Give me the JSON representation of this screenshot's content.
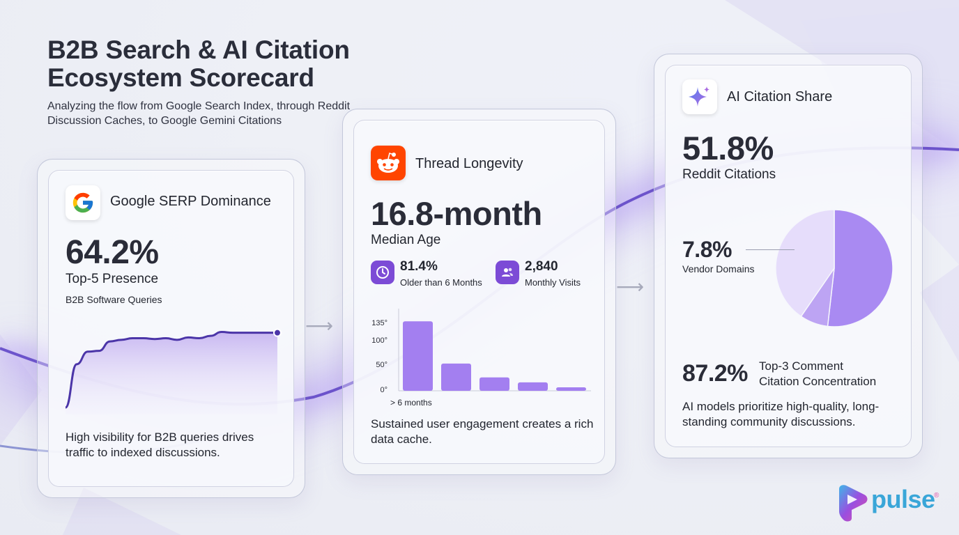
{
  "header": {
    "title": "B2B Search & AI Citation Ecosystem Scorecard",
    "subtitle": "Analyzing the flow from Google Search Index, through Reddit Discussion Caches, to Google Gemini Citations"
  },
  "cards": {
    "google": {
      "title": "Google SERP Dominance",
      "icon": "google-logo-icon",
      "value": "64.2%",
      "label": "Top-5 Presence",
      "sublabel": "B2B Software Queries",
      "description": "High visibility for B2B queries drives traffic to indexed discussions."
    },
    "reddit": {
      "title": "Thread Longevity",
      "icon": "reddit-logo-icon",
      "value": "16.8-month",
      "label": "Median Age",
      "stat1": {
        "value": "81.4%",
        "label": "Older than 6 Months",
        "icon": "clock-icon"
      },
      "stat2": {
        "value": "2,840",
        "label": "Monthly Visits",
        "icon": "users-icon"
      },
      "description": "Sustained user engagement creates a rich data cache."
    },
    "gemini": {
      "title": "AI Citation Share",
      "icon": "gemini-sparkle-icon",
      "value": "51.8%",
      "label": "Reddit Citations",
      "secondary_value": "7.8%",
      "secondary_label": "Vendor Domains",
      "concentration_value": "87.2%",
      "concentration_label_line1": "Top-3 Comment",
      "concentration_label_line2": "Citation Concentration",
      "description": "AI models prioritize high-quality, long-standing community discussions."
    }
  },
  "brand": {
    "name": "pulse",
    "mark": "®"
  },
  "colors": {
    "accent": "#7c4bd6",
    "bar": "#a37ff0",
    "pie_main": "#a98af2",
    "pie_light": "#e6ddfb",
    "line": "#4b35a8"
  },
  "chart_data": [
    {
      "type": "area",
      "title": "",
      "xlabel": "",
      "ylabel": "",
      "grid": false,
      "series": [
        {
          "values": [
            0.0,
            0.55,
            0.71,
            0.72,
            0.84,
            0.86,
            0.88,
            0.88,
            0.87,
            0.88,
            0.86,
            0.89,
            0.88,
            0.91,
            0.96,
            0.95,
            0.95,
            0.95,
            0.95,
            0.95
          ]
        }
      ]
    },
    {
      "type": "bar",
      "title": "",
      "categories": [
        "> 6 months",
        "",
        "",
        "",
        ""
      ],
      "values": [
        140,
        55,
        27,
        17,
        7
      ],
      "yticks": [
        "135°",
        "100°",
        "50°",
        "0°"
      ],
      "ylim": [
        0,
        160
      ],
      "grid": false
    },
    {
      "type": "pie",
      "title": "",
      "legend": false,
      "slices": [
        {
          "label": "Reddit Citations",
          "value": 51.8
        },
        {
          "label": "Vendor Domains",
          "value": 7.8
        },
        {
          "label": "",
          "value": 40.4
        }
      ]
    }
  ]
}
